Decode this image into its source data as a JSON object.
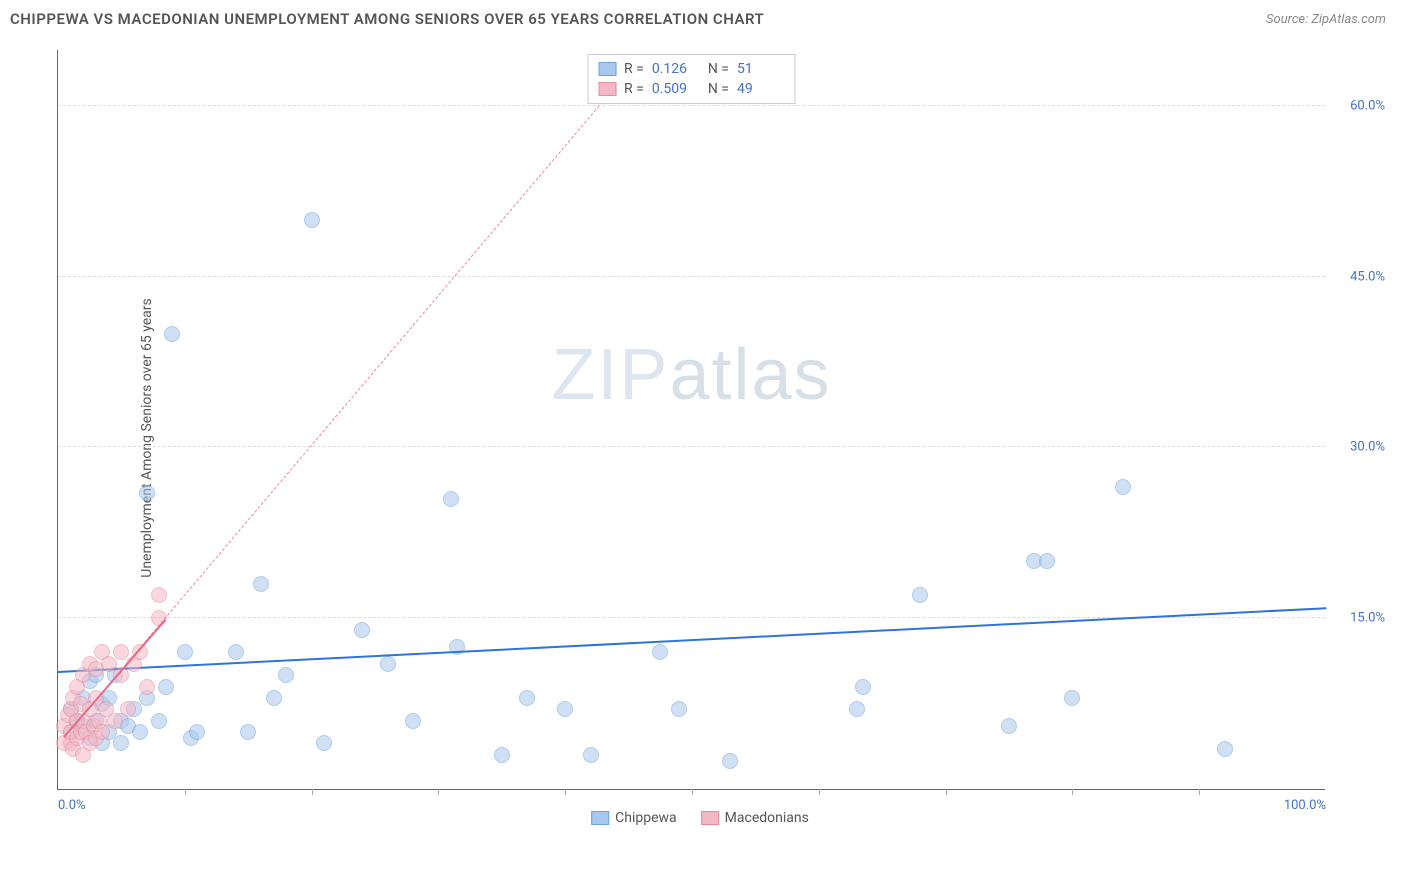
{
  "title": "CHIPPEWA VS MACEDONIAN UNEMPLOYMENT AMONG SENIORS OVER 65 YEARS CORRELATION CHART",
  "source": "Source: ZipAtlas.com",
  "watermark_a": "ZIP",
  "watermark_b": "atlas",
  "chart": {
    "type": "scatter",
    "yaxis_label": "Unemployment Among Seniors over 65 years",
    "xlim": [
      0,
      100
    ],
    "ylim": [
      0,
      65
    ],
    "xtick_min_label": "0.0%",
    "xtick_max_label": "100.0%",
    "yticks": [
      15,
      30,
      45,
      60
    ],
    "ytick_labels": [
      "15.0%",
      "30.0%",
      "45.0%",
      "60.0%"
    ],
    "xtick_positions": [
      10,
      20,
      30,
      40,
      50,
      60,
      70,
      80,
      90
    ],
    "grid_color": "#dddddd",
    "axis_color": "#666666",
    "tick_label_color": "#4472c4",
    "background_color": "#ffffff",
    "marker_radius": 8,
    "marker_opacity": 0.55,
    "series": [
      {
        "name": "Chippewa",
        "color_fill": "#a8c7ec",
        "color_stroke": "#6fa3dc",
        "R": "0.126",
        "N": "51",
        "trend": {
          "x1": 0,
          "y1": 10.2,
          "x2": 100,
          "y2": 15.8,
          "color": "#2e75d6",
          "width": 2.5,
          "dash": "solid"
        },
        "points": [
          [
            1,
            5
          ],
          [
            1.5,
            6
          ],
          [
            1,
            7
          ],
          [
            2,
            5.5
          ],
          [
            2,
            8
          ],
          [
            2.5,
            4.5
          ],
          [
            2.5,
            9.5
          ],
          [
            3,
            6
          ],
          [
            3,
            10
          ],
          [
            3.5,
            7.5
          ],
          [
            3.5,
            4
          ],
          [
            4,
            5
          ],
          [
            4,
            8
          ],
          [
            4.5,
            10
          ],
          [
            5,
            4
          ],
          [
            5,
            6
          ],
          [
            5.5,
            5.5
          ],
          [
            6,
            7
          ],
          [
            6.5,
            5
          ],
          [
            7,
            8
          ],
          [
            7,
            26
          ],
          [
            8,
            6
          ],
          [
            8.5,
            9
          ],
          [
            9,
            40
          ],
          [
            10,
            12
          ],
          [
            10.5,
            4.5
          ],
          [
            11,
            5
          ],
          [
            14,
            12
          ],
          [
            15,
            5
          ],
          [
            16,
            18
          ],
          [
            17,
            8
          ],
          [
            18,
            10
          ],
          [
            20,
            50
          ],
          [
            21,
            4
          ],
          [
            24,
            14
          ],
          [
            26,
            11
          ],
          [
            28,
            6
          ],
          [
            31,
            25.5
          ],
          [
            31.5,
            12.5
          ],
          [
            35,
            3
          ],
          [
            37,
            8
          ],
          [
            40,
            7
          ],
          [
            42,
            3
          ],
          [
            47.5,
            12
          ],
          [
            49,
            7
          ],
          [
            53,
            2.5
          ],
          [
            63,
            7
          ],
          [
            63.5,
            9
          ],
          [
            68,
            17
          ],
          [
            75,
            5.5
          ],
          [
            77,
            20
          ],
          [
            78,
            20
          ],
          [
            80,
            8
          ],
          [
            84,
            26.5
          ],
          [
            92,
            3.5
          ]
        ]
      },
      {
        "name": "Macedonians",
        "color_fill": "#f4b8c4",
        "color_stroke": "#e88aa0",
        "R": "0.509",
        "N": "49",
        "trend": {
          "x1": 0.5,
          "y1": 4.5,
          "x2": 45,
          "y2": 63,
          "color": "#e88aa0",
          "width": 1.2,
          "dash": "dashed"
        },
        "trend_solid": {
          "x1": 0.5,
          "y1": 4.5,
          "x2": 8.5,
          "y2": 14.8,
          "color": "#e56b87",
          "width": 2.5
        },
        "points": [
          [
            0.5,
            4
          ],
          [
            0.5,
            5.5
          ],
          [
            0.8,
            6.5
          ],
          [
            1,
            4
          ],
          [
            1,
            5
          ],
          [
            1,
            7
          ],
          [
            1.2,
            3.5
          ],
          [
            1.2,
            8
          ],
          [
            1.5,
            4.5
          ],
          [
            1.5,
            6
          ],
          [
            1.5,
            9
          ],
          [
            1.8,
            5
          ],
          [
            1.8,
            7.5
          ],
          [
            2,
            3
          ],
          [
            2,
            6
          ],
          [
            2,
            10
          ],
          [
            2.2,
            5
          ],
          [
            2.5,
            4
          ],
          [
            2.5,
            7
          ],
          [
            2.5,
            11
          ],
          [
            2.8,
            5.5
          ],
          [
            3,
            4.5
          ],
          [
            3,
            8
          ],
          [
            3,
            10.5
          ],
          [
            3.2,
            6
          ],
          [
            3.5,
            12
          ],
          [
            3.5,
            5
          ],
          [
            3.8,
            7
          ],
          [
            4,
            11
          ],
          [
            4.5,
            6
          ],
          [
            5,
            10
          ],
          [
            5,
            12
          ],
          [
            5.5,
            7
          ],
          [
            6,
            11
          ],
          [
            6.5,
            12
          ],
          [
            7,
            9
          ],
          [
            8,
            15
          ],
          [
            8,
            17
          ]
        ]
      }
    ]
  },
  "legend_bottom": [
    {
      "label": "Chippewa",
      "swatch_fill": "#a8c7ec",
      "swatch_stroke": "#6fa3dc"
    },
    {
      "label": "Macedonians",
      "swatch_fill": "#f4b8c4",
      "swatch_stroke": "#e88aa0"
    }
  ]
}
